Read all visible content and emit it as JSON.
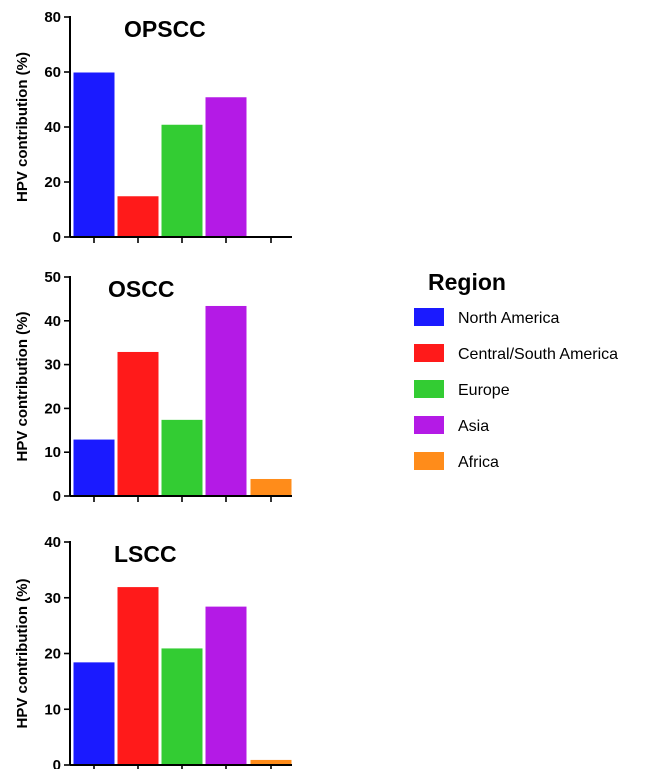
{
  "legend": {
    "title": "Region",
    "entries": [
      {
        "label": "North America",
        "color": "#1a1aff"
      },
      {
        "label": "Central/South America",
        "color": "#ff1a1a"
      },
      {
        "label": "Europe",
        "color": "#33cc33"
      },
      {
        "label": "Asia",
        "color": "#b41ae6"
      },
      {
        "label": "Africa",
        "color": "#ff8c1a"
      }
    ]
  },
  "chart_data": [
    {
      "type": "bar",
      "title": "OPSCC",
      "ylabel": "HPV contribution (%)",
      "categories": [
        "North America",
        "Central/South America",
        "Europe",
        "Asia",
        "Africa"
      ],
      "values": [
        60,
        15,
        41,
        51,
        0
      ],
      "ylim": [
        0,
        80
      ],
      "yticks": [
        0,
        20,
        40,
        60,
        80
      ],
      "grid": false,
      "legend_position": "right"
    },
    {
      "type": "bar",
      "title": "OSCC",
      "ylabel": "HPV contribution (%)",
      "categories": [
        "North America",
        "Central/South America",
        "Europe",
        "Asia",
        "Africa"
      ],
      "values": [
        13,
        33,
        17.5,
        43.5,
        4
      ],
      "ylim": [
        0,
        50
      ],
      "yticks": [
        0,
        10,
        20,
        30,
        40,
        50
      ],
      "grid": false,
      "legend_position": "right"
    },
    {
      "type": "bar",
      "title": "LSCC",
      "ylabel": "HPV contribution (%)",
      "categories": [
        "North America",
        "Central/South America",
        "Europe",
        "Asia",
        "Africa"
      ],
      "values": [
        18.5,
        32,
        21,
        28.5,
        1
      ],
      "ylim": [
        0,
        40
      ],
      "yticks": [
        0,
        10,
        20,
        30,
        40
      ],
      "grid": false,
      "legend_position": "right"
    }
  ]
}
